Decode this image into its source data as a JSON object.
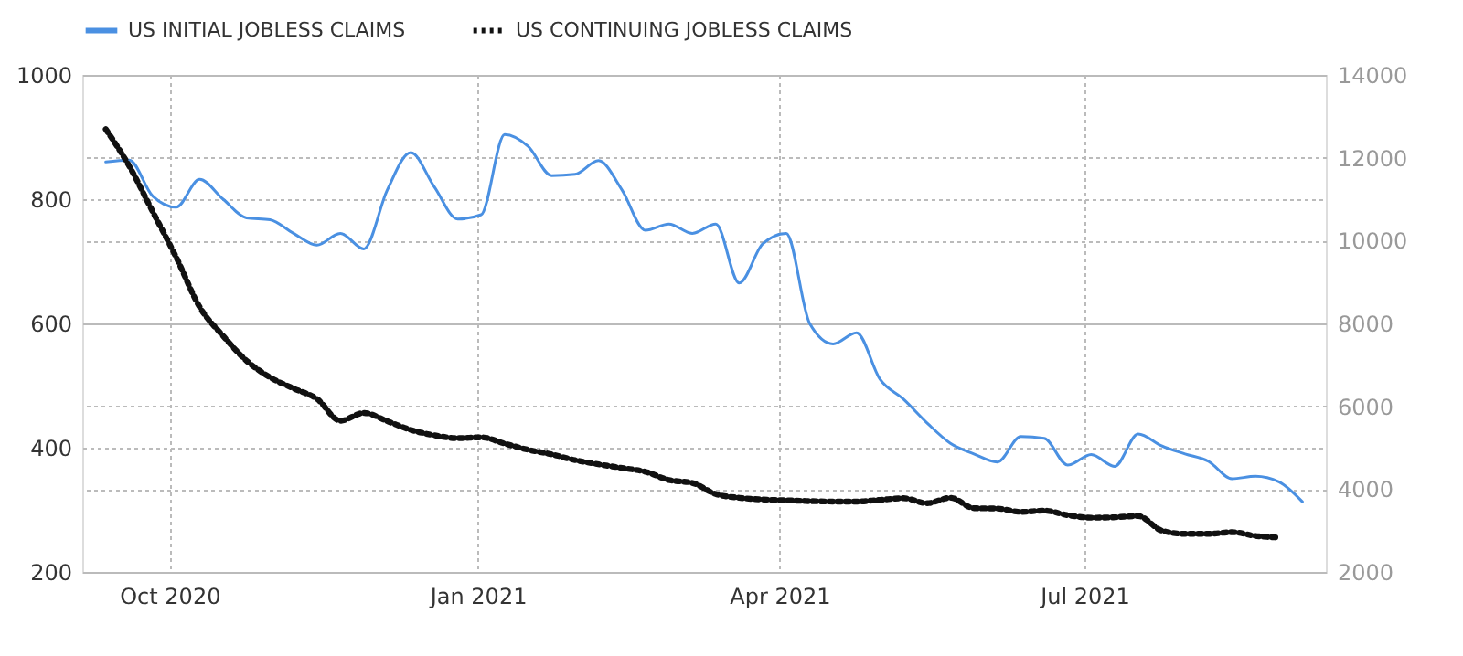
{
  "chart_data": {
    "type": "line",
    "x": [
      "2020-09-12",
      "2020-09-19",
      "2020-09-26",
      "2020-10-03",
      "2020-10-10",
      "2020-10-17",
      "2020-10-24",
      "2020-10-31",
      "2020-11-07",
      "2020-11-14",
      "2020-11-21",
      "2020-11-28",
      "2020-12-05",
      "2020-12-12",
      "2020-12-19",
      "2020-12-26",
      "2021-01-02",
      "2021-01-09",
      "2021-01-16",
      "2021-01-23",
      "2021-01-30",
      "2021-02-06",
      "2021-02-13",
      "2021-02-20",
      "2021-02-27",
      "2021-03-06",
      "2021-03-13",
      "2021-03-20",
      "2021-03-27",
      "2021-04-03",
      "2021-04-10",
      "2021-04-17",
      "2021-04-24",
      "2021-05-01",
      "2021-05-08",
      "2021-05-15",
      "2021-05-22",
      "2021-05-29",
      "2021-06-05",
      "2021-06-12",
      "2021-06-19",
      "2021-06-26",
      "2021-07-03",
      "2021-07-10",
      "2021-07-17",
      "2021-07-24",
      "2021-07-31",
      "2021-08-07",
      "2021-08-14",
      "2021-08-21",
      "2021-08-28",
      "2021-09-04"
    ],
    "series": [
      {
        "name": "US INITIAL JOBLESS CLAIMS",
        "color": "#4a90e2",
        "line_style": "solid",
        "values": [
          860,
          863,
          805,
          787,
          832,
          800,
          770,
          767,
          745,
          726,
          745,
          720,
          815,
          875,
          820,
          768,
          775,
          904,
          885,
          838,
          840,
          862,
          815,
          750,
          760,
          745,
          760,
          665,
          728,
          745,
          600,
          567,
          585,
          510,
          478,
          440,
          407,
          390,
          377,
          418,
          415,
          372,
          389,
          370,
          422,
          403,
          390,
          378,
          350,
          354,
          345,
          313
        ]
      },
      {
        "name": "US CONTINUING JOBLESS CLAIMS",
        "color": "#111111",
        "line_style": "dotted",
        "axis": "y2",
        "values": [
          12690,
          11800,
          10700,
          9600,
          8400,
          7700,
          7100,
          6700,
          6430,
          6180,
          5650,
          5840,
          5640,
          5430,
          5300,
          5230,
          5250,
          5100,
          4950,
          4840,
          4700,
          4600,
          4510,
          4420,
          4220,
          4150,
          3880,
          3790,
          3750,
          3730,
          3710,
          3700,
          3700,
          3740,
          3780,
          3660,
          3790,
          3540,
          3530,
          3450,
          3480,
          3370,
          3310,
          3320,
          3350,
          3000,
          2920,
          2920,
          2960,
          2870,
          2830,
          null
        ]
      }
    ],
    "xlim": [
      "2020-09-05",
      "2021-09-11"
    ],
    "xticks": [
      {
        "value": "2020-10-01",
        "label": "Oct 2020"
      },
      {
        "value": "2021-01-01",
        "label": "Jan 2021"
      },
      {
        "value": "2021-04-01",
        "label": "Apr 2021"
      },
      {
        "value": "2021-07-01",
        "label": "Jul 2021"
      }
    ],
    "ylim": [
      200,
      1000
    ],
    "yticks": [
      200,
      400,
      600,
      800,
      1000
    ],
    "y2lim": [
      2000,
      14000
    ],
    "y2ticks": [
      2000,
      4000,
      6000,
      8000,
      10000,
      12000,
      14000
    ],
    "grid": true,
    "legend": "top left"
  }
}
